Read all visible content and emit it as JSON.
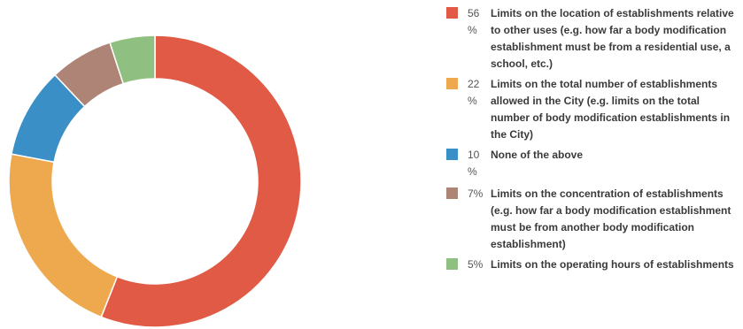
{
  "chart_data": {
    "type": "pie",
    "donut": true,
    "legend_position": "right",
    "slices": [
      {
        "value_label": "56 %",
        "value": 56,
        "label": "Limits on the location of establishments relative to other uses (e.g. how far a body modification establishment must be from a residential use, a school, etc.)",
        "color": "#e05a45"
      },
      {
        "value_label": "22 %",
        "value": 22,
        "label": "Limits on the total number of establishments allowed in the City (e.g. limits on the total number of body modification establishments in the City)",
        "color": "#eea94f"
      },
      {
        "value_label": "10 %",
        "value": 10,
        "label": "None of the above",
        "color": "#3a8fc6"
      },
      {
        "value_label": "7%",
        "value": 7,
        "label": "Limits on the concentration of establishments (e.g. how far a body modification establishment must be from another body modification establishment)",
        "color": "#ad8475"
      },
      {
        "value_label": "5%",
        "value": 5,
        "label": "Limits on the operating hours of establishments",
        "color": "#90c081"
      }
    ]
  }
}
